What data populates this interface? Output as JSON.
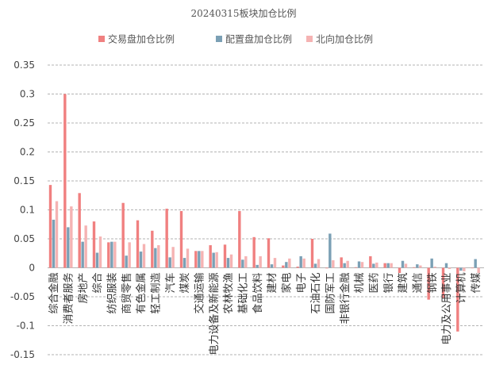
{
  "chart_data": {
    "type": "bar",
    "title": "20240315板块加仓比例",
    "xlabel": "",
    "ylabel": "",
    "ylim": [
      -0.15,
      0.35
    ],
    "yticks": [
      -0.15,
      -0.1,
      -0.05,
      0,
      0.05,
      0.1,
      0.15,
      0.2,
      0.25,
      0.3,
      0.35
    ],
    "grid": true,
    "legend_position": "top",
    "categories": [
      "综合金融",
      "消费者服务",
      "房地产",
      "综合",
      "纺织服装",
      "商贸零售",
      "有色金属",
      "轻工制造",
      "汽车",
      "煤炭",
      "交通运输",
      "电力设备及新能源",
      "农林牧渔",
      "基础化工",
      "食品饮料",
      "建材",
      "家电",
      "电子",
      "石油石化",
      "国防军工",
      "非银行金融",
      "机械",
      "医药",
      "银行",
      "建筑",
      "通信",
      "钢铁",
      "电力及公用事业",
      "计算机",
      "传媒"
    ],
    "series": [
      {
        "name": "交易盘加仓比例",
        "color": "#f08080",
        "values": [
          0.143,
          0.3,
          0.129,
          0.08,
          0.044,
          0.112,
          0.082,
          0.064,
          0.102,
          0.098,
          0.029,
          0.039,
          0.04,
          0.098,
          0.053,
          0.051,
          0.004,
          0.002,
          0.05,
          -0.001,
          0.018,
          0.001,
          0.02,
          0.008,
          -0.009,
          0.001,
          -0.055,
          -0.052,
          -0.11,
          0.0
        ]
      },
      {
        "name": "配置盘加仓比例",
        "color": "#7ba0b5",
        "values": [
          0.083,
          0.07,
          0.045,
          0.026,
          0.045,
          0.021,
          0.028,
          0.034,
          0.018,
          0.017,
          0.029,
          0.026,
          0.017,
          0.014,
          0.005,
          0.006,
          0.01,
          0.02,
          0.007,
          0.059,
          0.008,
          0.011,
          0.007,
          0.008,
          0.012,
          0.006,
          0.016,
          0.008,
          -0.005,
          0.015
        ]
      },
      {
        "name": "北向加仓比例",
        "color": "#f5b3b3",
        "values": [
          0.115,
          0.106,
          0.073,
          0.054,
          0.045,
          0.044,
          0.041,
          0.039,
          0.036,
          0.033,
          0.029,
          0.027,
          0.023,
          0.02,
          0.02,
          0.017,
          0.016,
          0.016,
          0.015,
          0.013,
          0.012,
          0.01,
          0.009,
          0.008,
          0.007,
          0.004,
          0.002,
          -0.002,
          -0.006,
          -0.009
        ]
      }
    ]
  }
}
